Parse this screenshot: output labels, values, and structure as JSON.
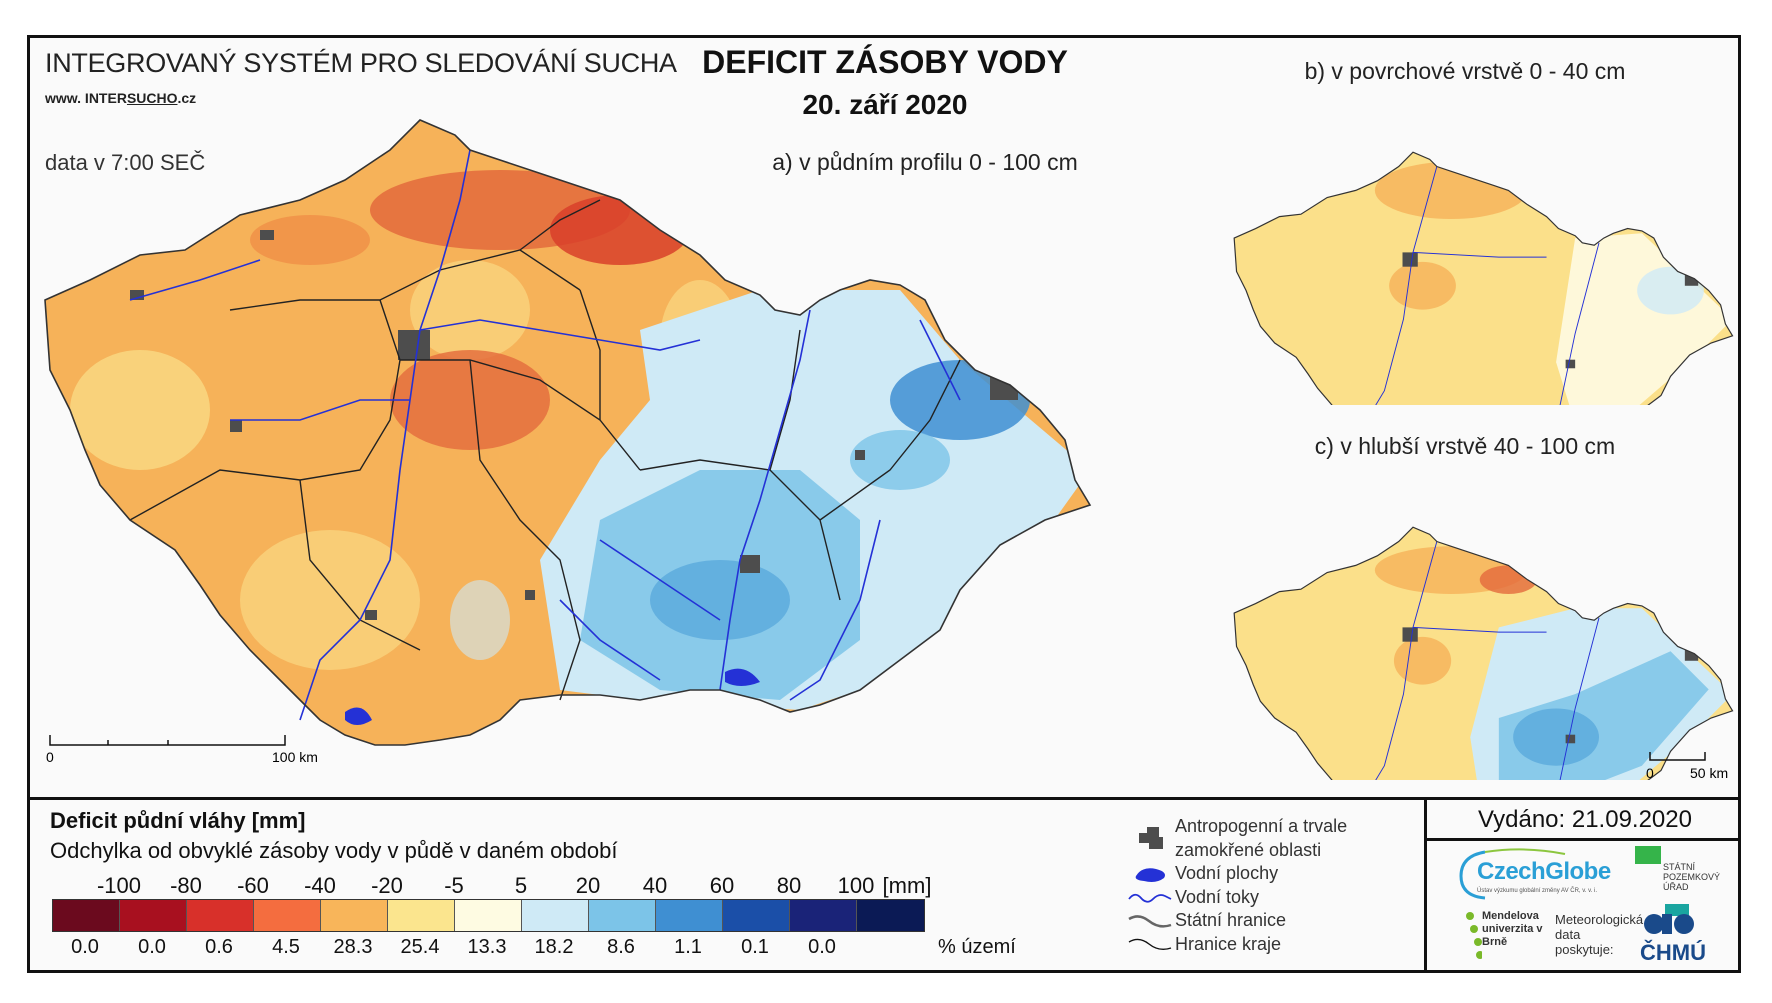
{
  "header": {
    "system_title": "INTEGROVANÝ SYSTÉM PRO SLEDOVÁNÍ SUCHA",
    "website_prefix": "www. INTER",
    "website_underlined": "SUCHO",
    "website_suffix": ".cz",
    "data_time": "data v 7:00 SEČ",
    "main_title": "DEFICIT ZÁSOBY VODY",
    "date": "20. září 2020"
  },
  "maps": {
    "a_label": "a) v půdním profilu 0 - 100 cm",
    "b_label": "b) v povrchové vrstvě 0 - 40 cm",
    "c_label": "c) v hlubší vrstvě 40 - 100 cm",
    "scale_a_zero": "0",
    "scale_a_end": "100 km",
    "scale_c_zero": "0",
    "scale_c_end": "50 km"
  },
  "legend": {
    "title": "Deficit půdní vláhy  [mm]",
    "subtitle": "Odchylka od obvyklé zásoby vody v půdě v daném období",
    "ticks": [
      "-100",
      "-80",
      "-60",
      "-40",
      "-20",
      "-5",
      "5",
      "20",
      "40",
      "60",
      "80",
      "100",
      "[mm]"
    ],
    "classes": [
      {
        "color": "#6b0a1e",
        "pct": "0.0"
      },
      {
        "color": "#a8101f",
        "pct": "0.0"
      },
      {
        "color": "#d8302a",
        "pct": "0.6"
      },
      {
        "color": "#f46d3f",
        "pct": "4.5"
      },
      {
        "color": "#f8b55a",
        "pct": "28.3"
      },
      {
        "color": "#fbe58e",
        "pct": "25.4"
      },
      {
        "color": "#fefbe2",
        "pct": "13.3"
      },
      {
        "color": "#cfeaf6",
        "pct": "18.2"
      },
      {
        "color": "#7cc4e8",
        "pct": "8.6"
      },
      {
        "color": "#3f8fd2",
        "pct": "1.1"
      },
      {
        "color": "#1b4fa8",
        "pct": "0.1"
      },
      {
        "color": "#1a2378",
        "pct": "0.0"
      },
      {
        "color": "#0b1a55",
        "pct": ""
      }
    ],
    "pct_unit": "% území"
  },
  "symbols": [
    {
      "icon": "urban-area-icon",
      "label": "Antropogenní a trvale"
    },
    {
      "icon": "",
      "label": "zamokřené oblasti"
    },
    {
      "icon": "water-body-icon",
      "label": "Vodní plochy"
    },
    {
      "icon": "river-icon",
      "label": "Vodní toky"
    },
    {
      "icon": "state-border-icon",
      "label": "Státní hranice"
    },
    {
      "icon": "region-border-icon",
      "label": "Hranice kraje"
    }
  ],
  "issued": "Vydáno: 21.09.2020",
  "logos": {
    "czechglobe": "CzechGlobe",
    "czechglobe_sub": "Ústav výzkumu globální změny AV ČR, v. v. i.",
    "spu": "STÁTNÍ POZEMKOVÝ ÚŘAD",
    "mendel": "Mendelova univerzita v Brně",
    "meteo": "Meteorologická data poskytuje:",
    "chmu": "ČHMÚ"
  },
  "colors": {
    "orange": "#f6b259",
    "yellow": "#fbe08a",
    "red": "#e0542f",
    "lightblue": "#bfe2f3",
    "blue": "#5aa9dc",
    "river": "#2431d6",
    "urban": "#4d4d4d"
  }
}
